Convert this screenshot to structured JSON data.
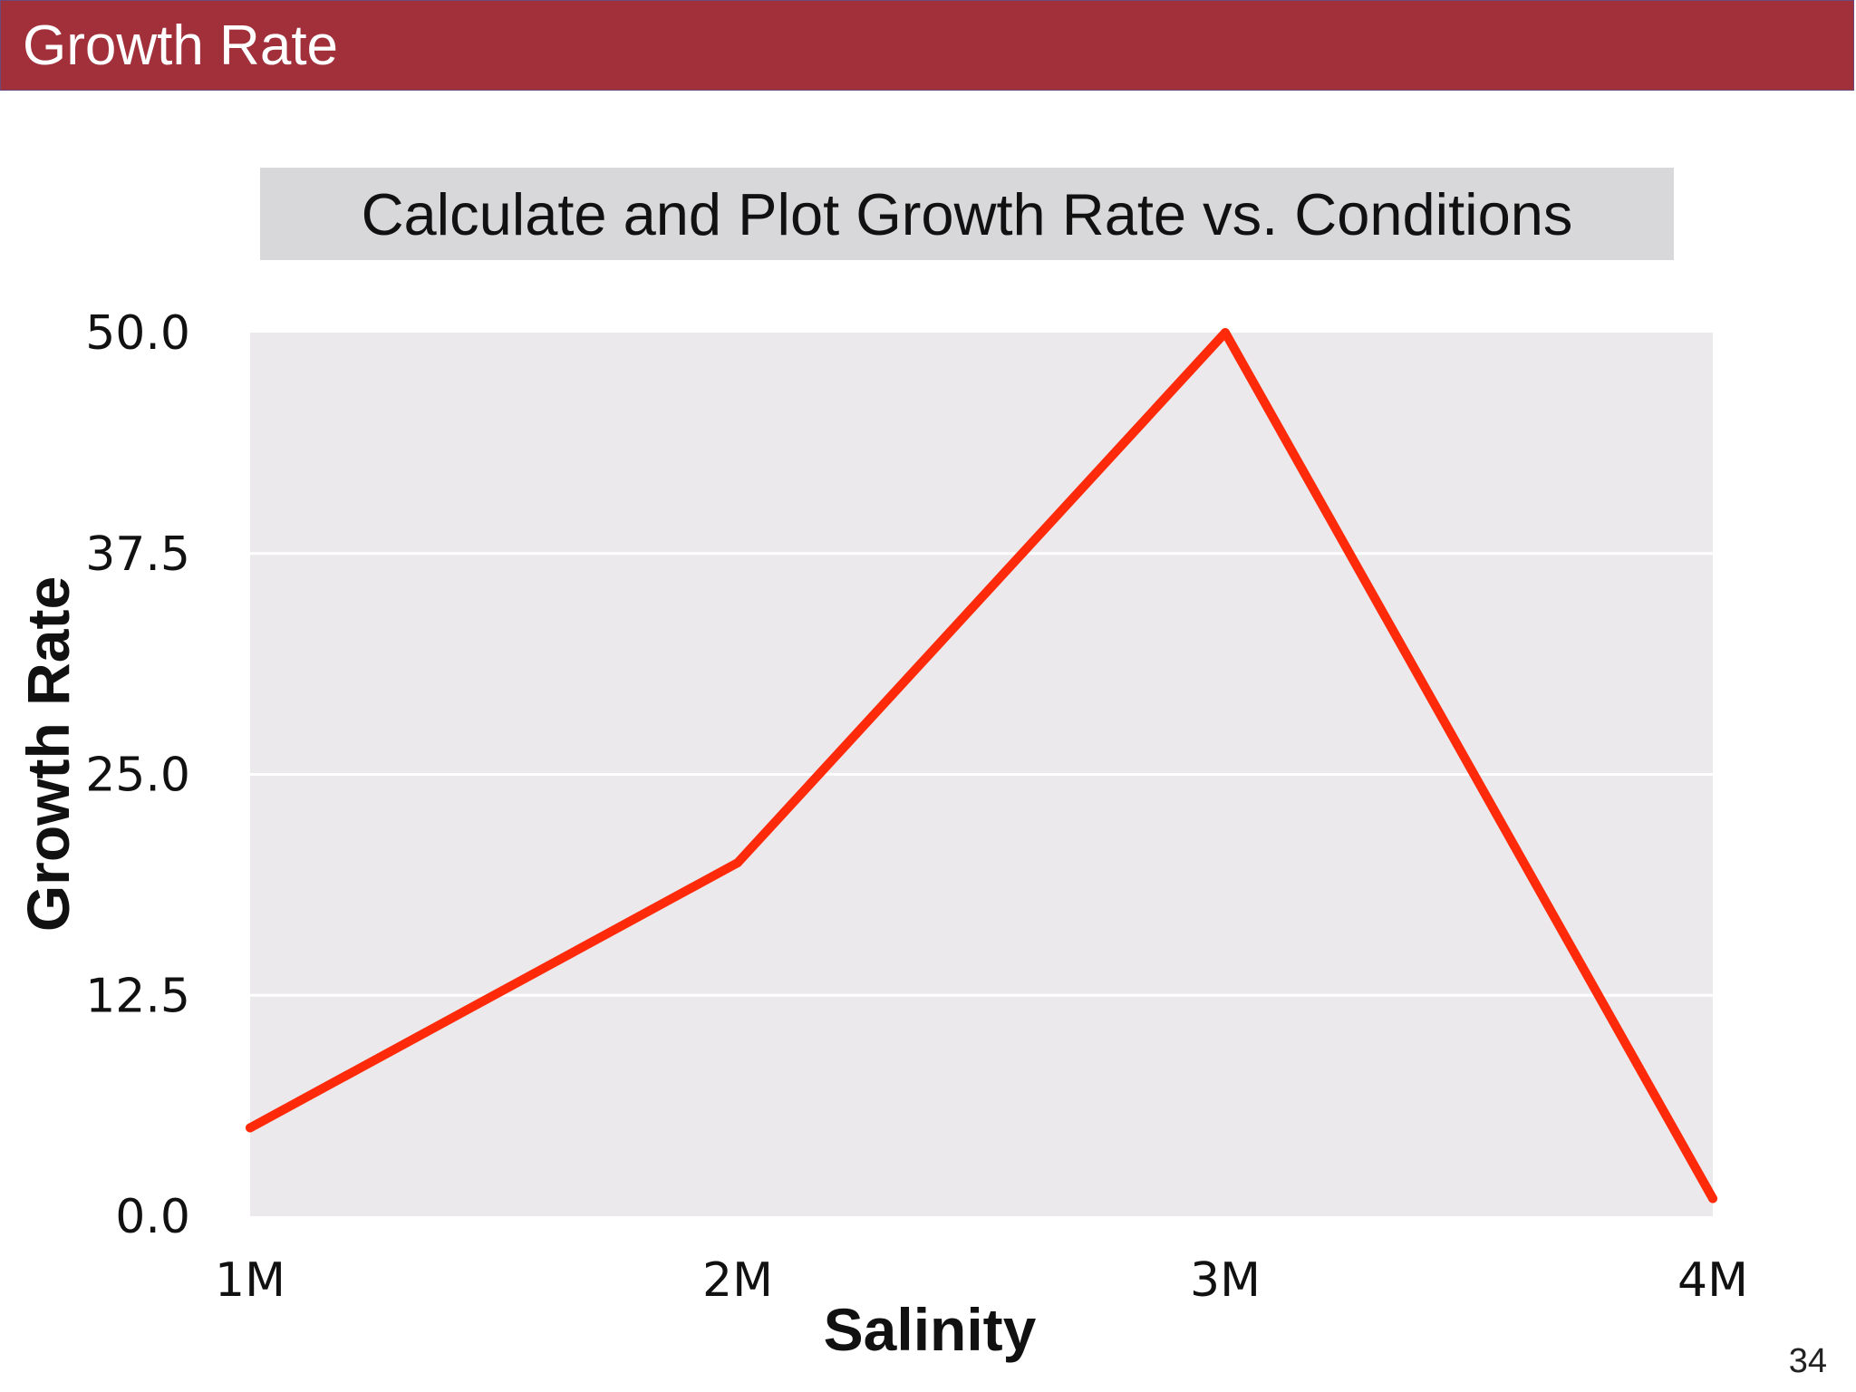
{
  "slide": {
    "header_title": "Growth Rate",
    "subtitle": "Calculate and Plot Growth Rate vs. Conditions",
    "page_number": "34"
  },
  "colors": {
    "header": "#a1303a",
    "plot_background": "#ebe9eb",
    "line": "#ff2a0a",
    "subtitle_box": "#d8d7da"
  },
  "chart_data": {
    "type": "line",
    "categories": [
      "1M",
      "2M",
      "3M",
      "4M"
    ],
    "series": [
      {
        "values": [
          5,
          20,
          50,
          1
        ]
      }
    ],
    "xlabel": "Salinity",
    "ylabel": "Growth Rate",
    "ylim": [
      0,
      50
    ],
    "yticks": [
      "0.0",
      "12.5",
      "25.0",
      "37.5",
      "50.0"
    ],
    "grid": "horizontal",
    "legend": "none"
  }
}
